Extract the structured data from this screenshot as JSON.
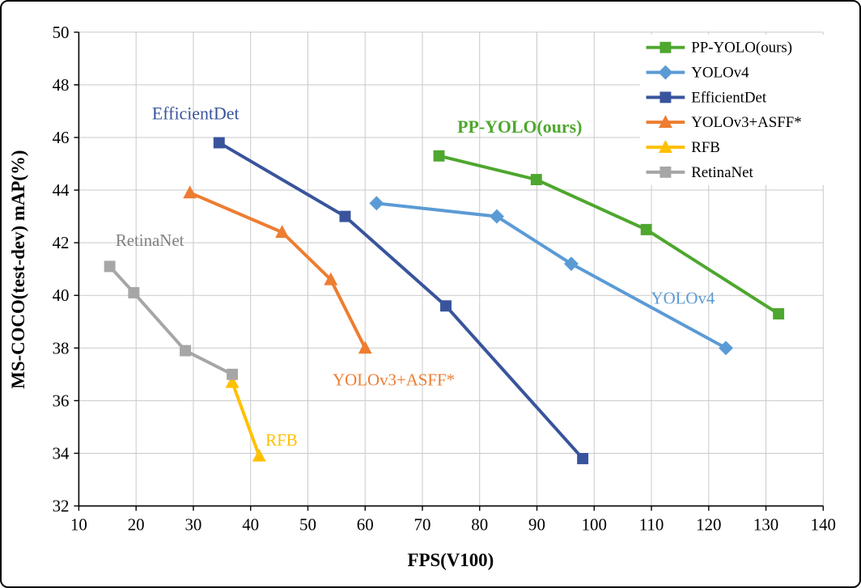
{
  "chart_data": {
    "type": "line",
    "title": "",
    "xlabel": "FPS(V100)",
    "ylabel": "MS-COCO(test-dev) mAP(%)",
    "xlim": [
      10,
      140
    ],
    "ylim": [
      32,
      50
    ],
    "xticks": [
      10,
      20,
      30,
      40,
      50,
      60,
      70,
      80,
      90,
      100,
      110,
      120,
      130,
      140
    ],
    "yticks": [
      32,
      34,
      36,
      38,
      40,
      42,
      44,
      46,
      48,
      50
    ],
    "grid": true,
    "legend_position": "top-right",
    "colors": {
      "grid": "#C9C9C9",
      "axis": "#000000",
      "background": "#FFFFFF"
    },
    "series": [
      {
        "name": "PP-YOLO(ours)",
        "color": "#4EA72E",
        "marker": "square",
        "points": [
          [
            72.9,
            45.3
          ],
          [
            89.9,
            44.4
          ],
          [
            109.1,
            42.5
          ],
          [
            132.2,
            39.3
          ]
        ]
      },
      {
        "name": "YOLOv4",
        "color": "#5B9BD5",
        "marker": "diamond",
        "points": [
          [
            62,
            43.5
          ],
          [
            83,
            43.0
          ],
          [
            96,
            41.2
          ],
          [
            123,
            38.0
          ]
        ]
      },
      {
        "name": "EfficientDet",
        "color": "#39549C",
        "marker": "square",
        "points": [
          [
            34.5,
            45.8
          ],
          [
            56.5,
            43.0
          ],
          [
            74.1,
            39.6
          ],
          [
            98.0,
            33.8
          ]
        ]
      },
      {
        "name": "YOLOv3+ASFF*",
        "color": "#ED7D31",
        "marker": "triangle",
        "points": [
          [
            29.4,
            43.9
          ],
          [
            45.5,
            42.4
          ],
          [
            54.0,
            40.6
          ],
          [
            60.0,
            38.0
          ]
        ]
      },
      {
        "name": "RFB",
        "color": "#FFC000",
        "marker": "triangle",
        "points": [
          [
            36.8,
            36.7
          ],
          [
            41.5,
            33.9
          ]
        ]
      },
      {
        "name": "RetinaNet",
        "color": "#A6A6A6",
        "marker": "square",
        "points": [
          [
            15.4,
            41.1
          ],
          [
            19.6,
            40.1
          ],
          [
            28.6,
            37.9
          ],
          [
            36.8,
            37.0
          ]
        ]
      }
    ],
    "annotations": [
      {
        "text": "EfficientDet",
        "x": 30.4,
        "y": 46.9,
        "color": "#39549C",
        "bold": false,
        "size": 22
      },
      {
        "text": "PP-YOLO(ours)",
        "x": 87.0,
        "y": 46.4,
        "color": "#4EA72E",
        "bold": true,
        "size": 22
      },
      {
        "text": "RetinaNet",
        "x": 22.4,
        "y": 42.1,
        "color": "#808080",
        "bold": false,
        "size": 21
      },
      {
        "text": "YOLOv3+ASFF*",
        "x": 65.0,
        "y": 36.8,
        "color": "#ED7D31",
        "bold": false,
        "size": 21
      },
      {
        "text": "RFB",
        "x": 45.4,
        "y": 34.5,
        "color": "#FFC000",
        "bold": false,
        "size": 21
      },
      {
        "text": "YOLOv4",
        "x": 115.5,
        "y": 39.9,
        "color": "#5B9BD5",
        "bold": false,
        "size": 21
      }
    ],
    "legend_labels": [
      "PP-YOLO(ours)",
      "YOLOv4",
      "EfficientDet",
      "YOLOv3+ASFF*",
      "RFB",
      "RetinaNet"
    ]
  }
}
